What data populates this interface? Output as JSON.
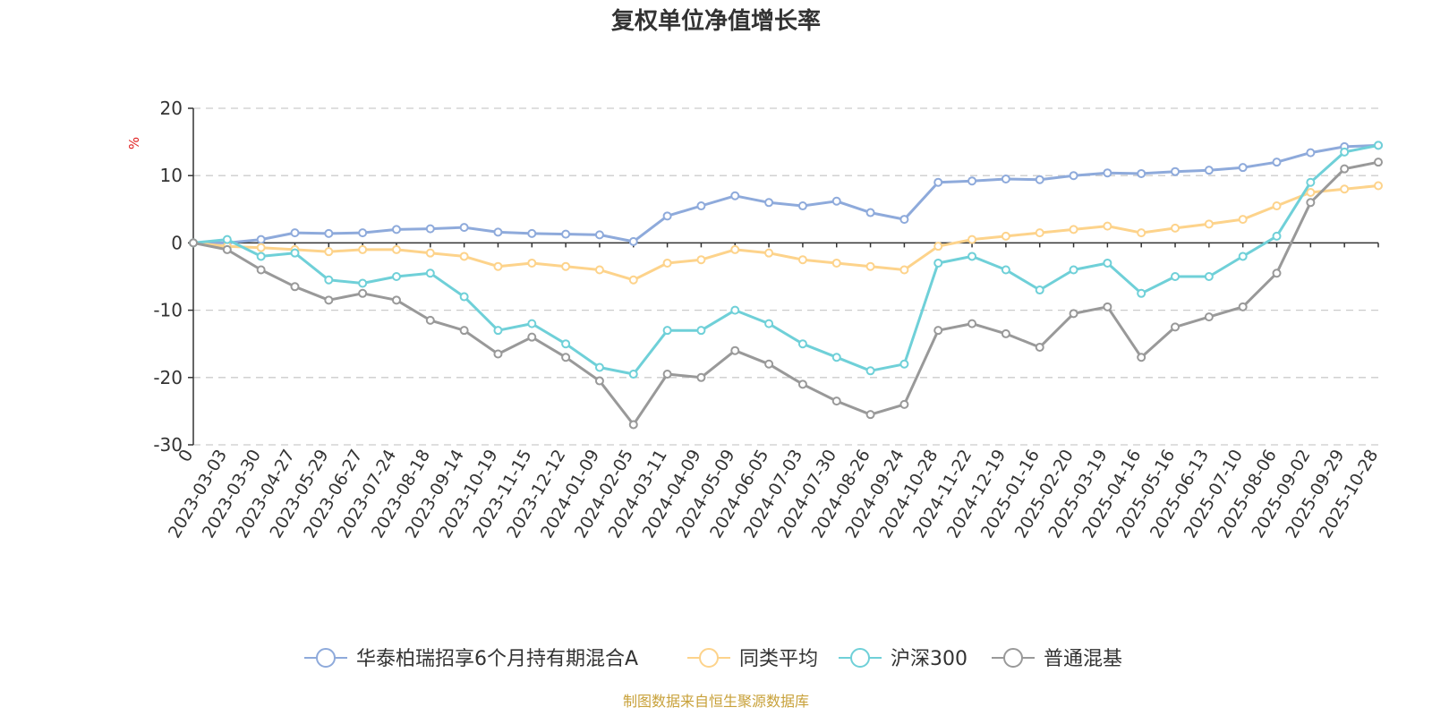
{
  "chart_data": {
    "type": "line",
    "title": "复权单位净值增长率",
    "ylabel": "%",
    "ylim": [
      -30,
      20
    ],
    "yticks": [
      20,
      10,
      0,
      -10,
      -20,
      -30
    ],
    "grid": true,
    "legend_position": "bottom",
    "source": "制图数据来自恒生聚源数据库",
    "categories": [
      "0",
      "2023-03-03",
      "2023-03-30",
      "2023-04-27",
      "2023-05-29",
      "2023-06-27",
      "2023-07-24",
      "2023-08-18",
      "2023-09-14",
      "2023-10-19",
      "2023-11-15",
      "2023-12-12",
      "2024-01-09",
      "2024-02-05",
      "2024-03-11",
      "2024-04-09",
      "2024-05-09",
      "2024-06-05",
      "2024-07-03",
      "2024-07-30",
      "2024-08-26",
      "2024-09-24",
      "2024-10-28",
      "2024-11-22",
      "2024-12-19",
      "2025-01-16",
      "2025-02-20",
      "2025-03-19",
      "2025-04-16",
      "2025-05-16",
      "2025-06-13",
      "2025-07-10",
      "2025-08-06",
      "2025-09-02",
      "2025-09-29",
      "2025-10-28"
    ],
    "series": [
      {
        "name": "华泰柏瑞招享6个月持有期混合A",
        "color": "#8eaadb",
        "values": [
          0,
          0,
          0.5,
          1.5,
          1.4,
          1.5,
          2.0,
          2.1,
          2.3,
          1.6,
          1.4,
          1.3,
          1.2,
          0.2,
          4.0,
          5.5,
          7.0,
          6.0,
          5.5,
          6.2,
          4.5,
          3.5,
          9.0,
          9.2,
          9.5,
          9.4,
          10.0,
          10.4,
          10.3,
          10.6,
          10.8,
          11.2,
          12.0,
          13.4,
          14.3,
          14.5
        ]
      },
      {
        "name": "同类平均",
        "color": "#fdd38b",
        "values": [
          0,
          -0.5,
          -0.7,
          -1.0,
          -1.3,
          -1.0,
          -1.0,
          -1.5,
          -2.0,
          -3.5,
          -3.0,
          -3.5,
          -4.0,
          -5.5,
          -3.0,
          -2.5,
          -1.0,
          -1.5,
          -2.5,
          -3.0,
          -3.5,
          -4.0,
          -0.5,
          0.5,
          1.0,
          1.5,
          2.0,
          2.5,
          1.5,
          2.2,
          2.8,
          3.5,
          5.5,
          7.5,
          8.0,
          8.5
        ]
      },
      {
        "name": "沪深300",
        "color": "#6fd0d8",
        "values": [
          0,
          0.5,
          -2.0,
          -1.5,
          -5.5,
          -6.0,
          -5.0,
          -4.5,
          -8.0,
          -13.0,
          -12.0,
          -15.0,
          -18.5,
          -19.5,
          -13.0,
          -13.0,
          -10.0,
          -12.0,
          -15.0,
          -17.0,
          -19.0,
          -18.0,
          -3.0,
          -2.0,
          -4.0,
          -7.0,
          -4.0,
          -3.0,
          -7.5,
          -5.0,
          -5.0,
          -2.0,
          1.0,
          9.0,
          13.5,
          14.5
        ]
      },
      {
        "name": "普通混基",
        "color": "#999999",
        "values": [
          0,
          -1.0,
          -4.0,
          -6.5,
          -8.5,
          -7.5,
          -8.5,
          -11.5,
          -13.0,
          -16.5,
          -14.0,
          -17.0,
          -20.5,
          -27.0,
          -19.5,
          -20.0,
          -16.0,
          -18.0,
          -21.0,
          -23.5,
          -25.5,
          -24.0,
          -13.0,
          -12.0,
          -13.5,
          -15.5,
          -10.5,
          -9.5,
          -17.0,
          -12.5,
          -11.0,
          -9.5,
          -4.5,
          6.0,
          11.0,
          12.0
        ]
      }
    ]
  }
}
